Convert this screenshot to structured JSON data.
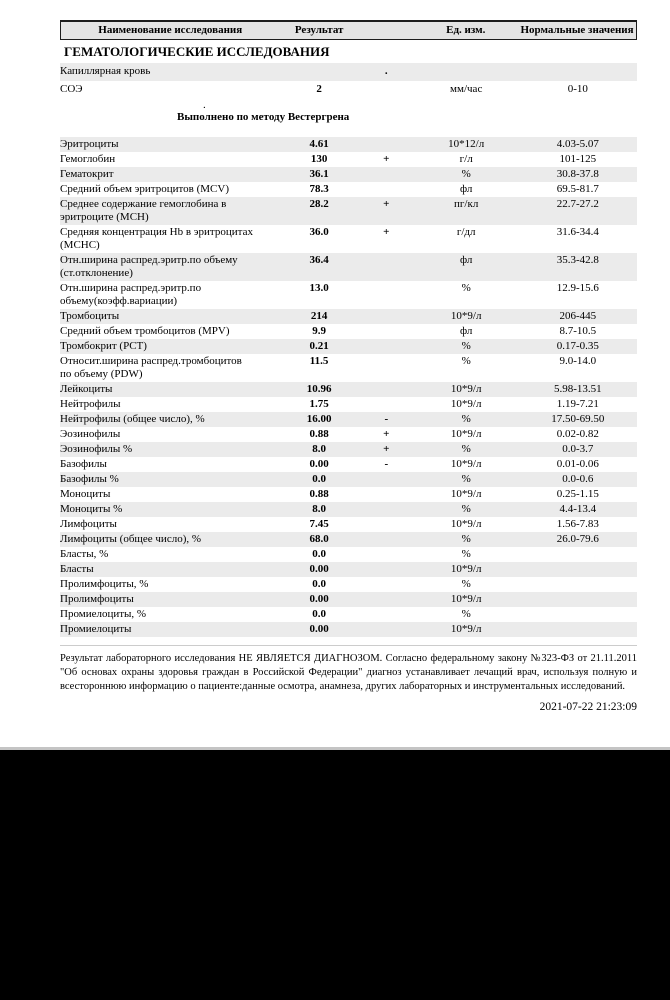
{
  "header": {
    "col_name": "Наименование исследования",
    "col_result": "Результат",
    "col_units": "Ед. изм.",
    "col_normal": "Нормальные значения"
  },
  "section": {
    "title": "ГЕМАТОЛОГИЧЕСКИЕ ИССЛЕДОВАНИЯ"
  },
  "pre_rows": [
    {
      "name": "Капиллярная кровь",
      "result": "",
      "flag": ".",
      "units": "",
      "normal": ""
    },
    {
      "name": "СОЭ",
      "result": "2",
      "flag": "",
      "units": "мм/час",
      "normal": "0-10"
    }
  ],
  "method_note": {
    "dot": ".",
    "text": "Выполнено по методу Вестергрена"
  },
  "results": {
    "rows": [
      {
        "name": "Эритроциты",
        "result": "4.61",
        "flag": "",
        "units": "10*12/л",
        "normal": "4.03-5.07"
      },
      {
        "name": "Гемоглобин",
        "result": "130",
        "flag": "+",
        "units": "г/л",
        "normal": "101-125"
      },
      {
        "name": "Гематокрит",
        "result": "36.1",
        "flag": "",
        "units": "%",
        "normal": "30.8-37.8"
      },
      {
        "name": "Средний объем эритроцитов (MCV)",
        "result": "78.3",
        "flag": "",
        "units": "фл",
        "normal": "69.5-81.7"
      },
      {
        "name": "Среднее содержание гемоглобина в эритроците (MCH)",
        "result": "28.2",
        "flag": "+",
        "units": "пг/кл",
        "normal": "22.7-27.2"
      },
      {
        "name": "Средняя концентрация Hb в эритроцитах (MCHC)",
        "result": "36.0",
        "flag": "+",
        "units": "г/дл",
        "normal": "31.6-34.4"
      },
      {
        "name": "Отн.ширина распред.эритр.по объему (ст.отклонение)",
        "result": "36.4",
        "flag": "",
        "units": "фл",
        "normal": "35.3-42.8"
      },
      {
        "name": "Отн.ширина распред.эритр.по объему(коэфф.вариации)",
        "result": "13.0",
        "flag": "",
        "units": "%",
        "normal": "12.9-15.6"
      },
      {
        "name": "Тромбоциты",
        "result": "214",
        "flag": "",
        "units": "10*9/л",
        "normal": "206-445"
      },
      {
        "name": "Средний объем тромбоцитов (MPV)",
        "result": "9.9",
        "flag": "",
        "units": "фл",
        "normal": "8.7-10.5"
      },
      {
        "name": "Тромбокрит (PCT)",
        "result": "0.21",
        "flag": "",
        "units": "%",
        "normal": "0.17-0.35"
      },
      {
        "name": "Относит.ширина распред.тромбоцитов по объему (PDW)",
        "result": "11.5",
        "flag": "",
        "units": "%",
        "normal": "9.0-14.0"
      },
      {
        "name": "Лейкоциты",
        "result": "10.96",
        "flag": "",
        "units": "10*9/л",
        "normal": "5.98-13.51"
      },
      {
        "name": "Нейтрофилы",
        "result": "1.75",
        "flag": "",
        "units": "10*9/л",
        "normal": "1.19-7.21"
      },
      {
        "name": "Нейтрофилы (общее число), %",
        "result": "16.00",
        "flag": "-",
        "units": "%",
        "normal": "17.50-69.50"
      },
      {
        "name": "Эозинофилы",
        "result": "0.88",
        "flag": "+",
        "units": "10*9/л",
        "normal": "0.02-0.82"
      },
      {
        "name": "Эозинофилы %",
        "result": "8.0",
        "flag": "+",
        "units": "%",
        "normal": "0.0-3.7"
      },
      {
        "name": "Базофилы",
        "result": "0.00",
        "flag": "-",
        "units": "10*9/л",
        "normal": "0.01-0.06"
      },
      {
        "name": "Базофилы %",
        "result": "0.0",
        "flag": "",
        "units": "%",
        "normal": "0.0-0.6"
      },
      {
        "name": "Моноциты",
        "result": "0.88",
        "flag": "",
        "units": "10*9/л",
        "normal": "0.25-1.15"
      },
      {
        "name": "Моноциты %",
        "result": "8.0",
        "flag": "",
        "units": "%",
        "normal": "4.4-13.4"
      },
      {
        "name": "Лимфоциты",
        "result": "7.45",
        "flag": "",
        "units": "10*9/л",
        "normal": "1.56-7.83"
      },
      {
        "name": "Лимфоциты (общее число), %",
        "result": "68.0",
        "flag": "",
        "units": "%",
        "normal": "26.0-79.6"
      },
      {
        "name": "Бласты, %",
        "result": "0.0",
        "flag": "",
        "units": "%",
        "normal": ""
      },
      {
        "name": "Бласты",
        "result": "0.00",
        "flag": "",
        "units": "10*9/л",
        "normal": ""
      },
      {
        "name": "Пролимфоциты, %",
        "result": "0.0",
        "flag": "",
        "units": "%",
        "normal": ""
      },
      {
        "name": "Пролимфоциты",
        "result": "0.00",
        "flag": "",
        "units": "10*9/л",
        "normal": ""
      },
      {
        "name": "Промиелоциты, %",
        "result": "0.0",
        "flag": "",
        "units": "%",
        "normal": ""
      },
      {
        "name": "Промиелоциты",
        "result": "0.00",
        "flag": "",
        "units": "10*9/л",
        "normal": ""
      }
    ]
  },
  "footer": {
    "disclaimer": "Результат лабораторного исследования НЕ ЯВЛЯЕТСЯ ДИАГНОЗОМ. Согласно федеральному закону №323-ФЗ от 21.11.2011 \"Об основах охраны здоровья граждан в Российской Федерации\" диагноз устанавливает лечащий врач, используя полную и всестороннюю информацию о пациенте:данные осмотра, анамнеза, других лабораторных и инструментальных исследований.",
    "timestamp": "2021-07-22 21:23:09"
  },
  "colors": {
    "row_shade": "#ebebeb",
    "header_bg": "#e4e4e4",
    "divider": "#c4c4c4",
    "bottom_bar": "#000000"
  }
}
